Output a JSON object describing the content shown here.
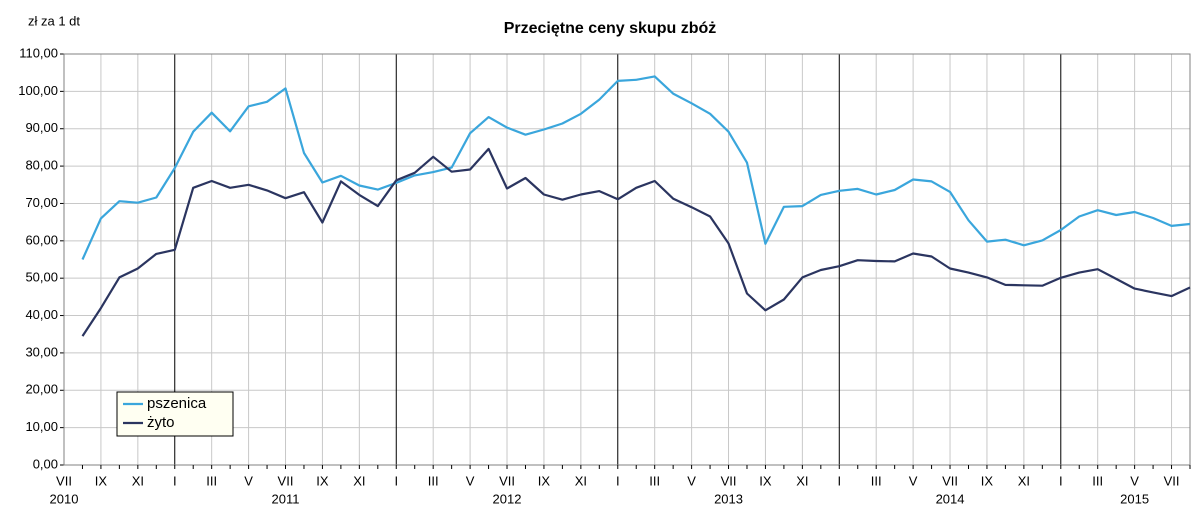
{
  "chart_data": {
    "type": "line",
    "title": "Przeciętne ceny skupu zbóż",
    "y_label": "zł za 1 dt",
    "categories": [
      "VII",
      null,
      "IX",
      null,
      "XI",
      null,
      "I",
      null,
      "III",
      null,
      "V",
      null,
      "VII",
      null,
      "IX",
      null,
      "XI",
      null,
      "I",
      null,
      "III",
      null,
      "V",
      null,
      "VII",
      null,
      "IX",
      null,
      "XI",
      null,
      "I",
      null,
      "III",
      null,
      "V",
      null,
      "VII",
      null,
      "IX",
      null,
      "XI",
      null,
      "I",
      null,
      "III",
      null,
      "V",
      null,
      "VII",
      null,
      "IX",
      null,
      "XI",
      null,
      "I",
      null,
      "III",
      null,
      "V",
      null,
      "VII"
    ],
    "years": [
      "2010",
      "2011",
      "2012",
      "2013",
      "2014",
      "2015"
    ],
    "series": [
      {
        "name": "pszenica",
        "color": "#3aa6dc",
        "values": [
          55.0,
          66.0,
          70.6,
          70.2,
          71.6,
          79.5,
          89.2,
          94.3,
          89.3,
          96.0,
          97.2,
          100.8,
          83.5,
          75.6,
          77.4,
          74.8,
          73.7,
          75.5,
          77.5,
          78.4,
          79.6,
          88.8,
          93.1,
          90.3,
          88.4,
          89.8,
          91.4,
          94.0,
          97.8,
          102.8,
          103.1,
          104.0,
          99.4,
          96.8,
          94.0,
          89.2,
          80.9,
          59.2,
          69.1,
          69.3,
          72.3,
          73.4,
          73.9,
          72.4,
          73.6,
          76.4,
          75.9,
          73.1,
          65.5,
          59.8,
          60.3,
          58.8,
          60.1,
          62.9,
          66.5,
          68.2,
          66.9,
          67.7,
          66.1,
          64.0,
          64.5
        ]
      },
      {
        "name": "żyto",
        "color": "#2b3560",
        "values": [
          34.5,
          42.0,
          50.2,
          52.6,
          56.5,
          57.6,
          74.2,
          76.0,
          74.2,
          75.0,
          73.5,
          71.4,
          73.0,
          64.9,
          75.9,
          72.3,
          69.3,
          76.2,
          78.2,
          82.5,
          78.5,
          79.1,
          84.6,
          74.0,
          76.8,
          72.4,
          71.0,
          72.4,
          73.3,
          71.1,
          74.2,
          76.0,
          71.3,
          69.0,
          66.5,
          59.3,
          45.9,
          41.4,
          44.3,
          50.2,
          52.2,
          53.2,
          54.8,
          54.6,
          54.5,
          56.6,
          55.8,
          52.6,
          51.5,
          50.2,
          48.2,
          48.1,
          48.0,
          50.1,
          51.5,
          52.4,
          49.8,
          47.2,
          46.2,
          45.2,
          47.5
        ]
      }
    ],
    "ylim": [
      0,
      110
    ],
    "yticks": [
      {
        "value": 0,
        "label": "0,00"
      },
      {
        "value": 10,
        "label": "10,00"
      },
      {
        "value": 20,
        "label": "20,00"
      },
      {
        "value": 30,
        "label": "30,00"
      },
      {
        "value": 40,
        "label": "40,00"
      },
      {
        "value": 50,
        "label": "50,00"
      },
      {
        "value": 60,
        "label": "60,00"
      },
      {
        "value": 70,
        "label": "70,00"
      },
      {
        "value": 80,
        "label": "80,00"
      },
      {
        "value": 90,
        "label": "90,00"
      },
      {
        "value": 100,
        "label": "100,00"
      },
      {
        "value": 110,
        "label": "110,00"
      }
    ],
    "grid": true,
    "legend": "lower left"
  }
}
